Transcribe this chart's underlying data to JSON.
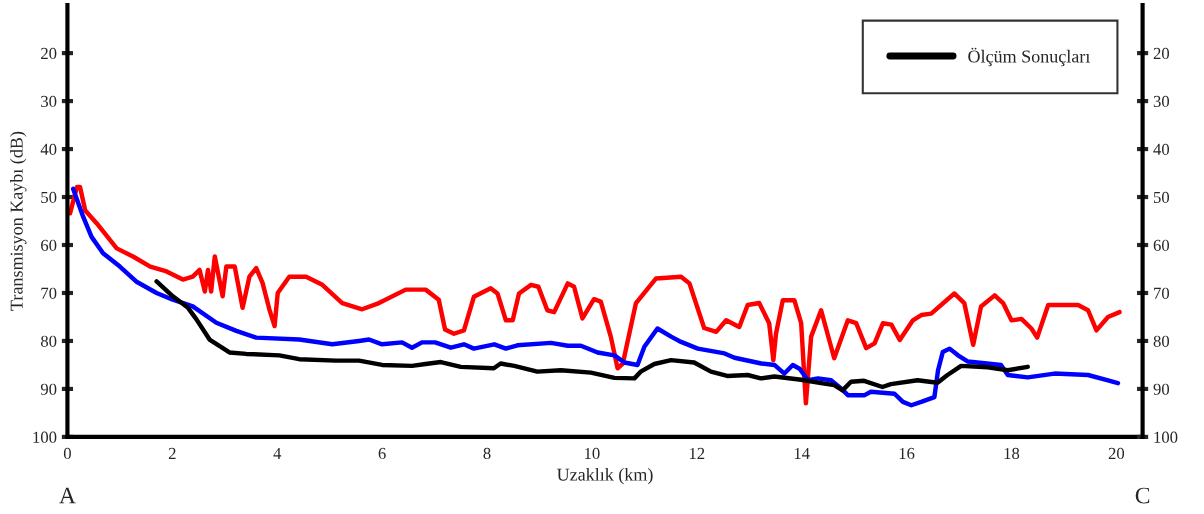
{
  "chart_data": {
    "type": "line",
    "xlabel": "Uzaklık (km)",
    "ylabel": "Transmisyon Kaybı (dB)",
    "xlim": [
      0,
      20.5
    ],
    "xticks": [
      0,
      2,
      4,
      6,
      8,
      10,
      12,
      14,
      16,
      18,
      20
    ],
    "ylim": [
      100,
      10
    ],
    "yticks": [
      20,
      30,
      40,
      50,
      60,
      70,
      80,
      90,
      100
    ],
    "y2lim": [
      100,
      10
    ],
    "y2ticks": [
      20,
      30,
      40,
      50,
      60,
      70,
      80,
      90,
      100
    ],
    "grid": false,
    "legend": "top right",
    "line_style": "solid",
    "marker": "none",
    "annotations": [
      "A",
      "C"
    ],
    "series": [
      {
        "color": "#ff0000",
        "x": [
          0.05,
          0.18,
          0.24,
          0.34,
          0.56,
          0.94,
          1.25,
          1.58,
          1.89,
          2.2,
          2.39,
          2.52,
          2.62,
          2.68,
          2.74,
          2.81,
          2.96,
          3.03,
          3.19,
          3.34,
          3.47,
          3.6,
          3.72,
          3.85,
          3.95,
          4.01,
          4.23,
          4.55,
          4.86,
          5.24,
          5.62,
          5.94,
          6.45,
          6.83,
          7.08,
          7.2,
          7.37,
          7.56,
          7.75,
          8.07,
          8.2,
          8.36,
          8.49,
          8.61,
          8.84,
          8.98,
          9.15,
          9.28,
          9.54,
          9.66,
          9.82,
          10.04,
          10.17,
          10.36,
          10.49,
          10.59,
          10.84,
          11.22,
          11.7,
          11.86,
          12.14,
          12.37,
          12.56,
          12.81,
          12.97,
          13.19,
          13.38,
          13.46,
          13.51,
          13.64,
          13.86,
          13.99,
          14.08,
          14.18,
          14.37,
          14.62,
          14.88,
          15.04,
          15.23,
          15.39,
          15.55,
          15.71,
          15.87,
          16.12,
          16.28,
          16.47,
          16.91,
          17.1,
          17.27,
          17.42,
          17.68,
          17.84,
          18.0,
          18.19,
          18.38,
          18.49,
          18.7,
          19.27,
          19.46,
          19.62,
          19.84,
          20.06
        ],
        "values": [
          53.4,
          47.9,
          47.9,
          52.8,
          55.5,
          60.7,
          62.4,
          64.5,
          65.5,
          67.2,
          66.6,
          65.2,
          69.7,
          65.2,
          69.7,
          62.4,
          70.7,
          64.5,
          64.5,
          73.1,
          66.6,
          64.8,
          67.9,
          73.4,
          76.9,
          70,
          66.6,
          66.6,
          68.3,
          72.1,
          73.4,
          72.1,
          69.3,
          69.3,
          71.4,
          77.6,
          78.5,
          77.8,
          70.8,
          69.0,
          70.1,
          75.7,
          75.7,
          70.1,
          68.3,
          68.7,
          73.6,
          74.0,
          68.0,
          68.7,
          75.3,
          71.3,
          71.8,
          79.1,
          85.7,
          84.7,
          72.1,
          67.0,
          66.6,
          68.0,
          77.3,
          78.1,
          75.7,
          77.1,
          72.5,
          72.1,
          76.3,
          84.0,
          78.5,
          71.5,
          71.5,
          76.3,
          93.0,
          79.1,
          73.6,
          83.6,
          75.7,
          76.3,
          81.5,
          80.5,
          76.3,
          76.6,
          79.8,
          75.7,
          74.6,
          74.3,
          70.1,
          72.1,
          80.8,
          72.8,
          70.5,
          72.1,
          75.7,
          75.4,
          77.4,
          79.3,
          72.5,
          72.5,
          73.6,
          77.8,
          75.0,
          74.0
        ]
      },
      {
        "color": "#0000ff",
        "x": [
          0.11,
          0.3,
          0.46,
          0.68,
          1.0,
          1.31,
          1.7,
          2.01,
          2.39,
          2.84,
          3.22,
          3.6,
          4.42,
          5.05,
          5.56,
          5.75,
          6.0,
          6.38,
          6.57,
          6.76,
          7.01,
          7.31,
          7.56,
          7.75,
          8.14,
          8.36,
          8.58,
          9.22,
          9.54,
          9.79,
          10.11,
          10.43,
          10.62,
          10.87,
          11.0,
          11.25,
          11.51,
          11.7,
          12.02,
          12.53,
          12.72,
          13.23,
          13.48,
          13.67,
          13.83,
          13.96,
          14.12,
          14.31,
          14.56,
          14.75,
          14.88,
          15.2,
          15.32,
          15.77,
          15.93,
          16.09,
          16.28,
          16.53,
          16.6,
          16.69,
          16.82,
          16.98,
          17.17,
          17.8,
          17.93,
          18.31,
          18.82,
          19.46,
          19.84,
          20.03
        ],
        "values": [
          48.3,
          54.1,
          58.3,
          61.7,
          64.5,
          67.6,
          70.0,
          71.4,
          72.8,
          76.2,
          77.9,
          79.3,
          79.7,
          80.7,
          80.0,
          79.7,
          80.7,
          80.3,
          81.4,
          80.3,
          80.3,
          81.4,
          80.7,
          81.6,
          80.7,
          81.6,
          80.9,
          80.4,
          81.0,
          81.0,
          82.4,
          83.0,
          84.5,
          85.0,
          81.2,
          77.4,
          79.1,
          80.2,
          81.6,
          82.6,
          83.5,
          84.7,
          85.0,
          86.8,
          85.0,
          85.8,
          88.2,
          87.8,
          88.2,
          89.9,
          91.3,
          91.3,
          90.6,
          91.0,
          92.7,
          93.4,
          92.7,
          91.7,
          86.1,
          82.3,
          81.6,
          83.0,
          84.3,
          85.0,
          87.1,
          87.6,
          86.8,
          87.1,
          88.2,
          88.8
        ]
      },
      {
        "name": "Ölçüm Sonuçları",
        "color": "#000000",
        "x": [
          1.7,
          2.01,
          2.3,
          2.46,
          2.71,
          3.09,
          3.41,
          4.04,
          4.42,
          5.12,
          5.56,
          6.0,
          6.57,
          6.83,
          7.12,
          7.5,
          8.13,
          8.26,
          8.52,
          8.96,
          9.41,
          9.98,
          10.43,
          10.81,
          10.93,
          11.19,
          11.51,
          11.95,
          12.27,
          12.58,
          12.97,
          13.22,
          13.48,
          13.99,
          14.37,
          14.62,
          14.78,
          14.94,
          15.19,
          15.54,
          15.7,
          16.21,
          16.59,
          16.78,
          17.04,
          17.55,
          17.93,
          18.31
        ],
        "values": [
          67.6,
          70.7,
          73.1,
          75.5,
          79.7,
          82.4,
          82.7,
          83.0,
          83.8,
          84.1,
          84.1,
          85.0,
          85.2,
          84.8,
          84.4,
          85.4,
          85.7,
          84.7,
          85.2,
          86.4,
          86.1,
          86.6,
          87.7,
          87.8,
          86.4,
          84.8,
          84.0,
          84.5,
          86.4,
          87.3,
          87.1,
          87.8,
          87.4,
          88.1,
          88.8,
          89.2,
          90.3,
          88.5,
          88.3,
          89.6,
          89.0,
          88.2,
          88.7,
          87.1,
          85.2,
          85.5,
          86.1,
          85.4
        ]
      }
    ]
  }
}
